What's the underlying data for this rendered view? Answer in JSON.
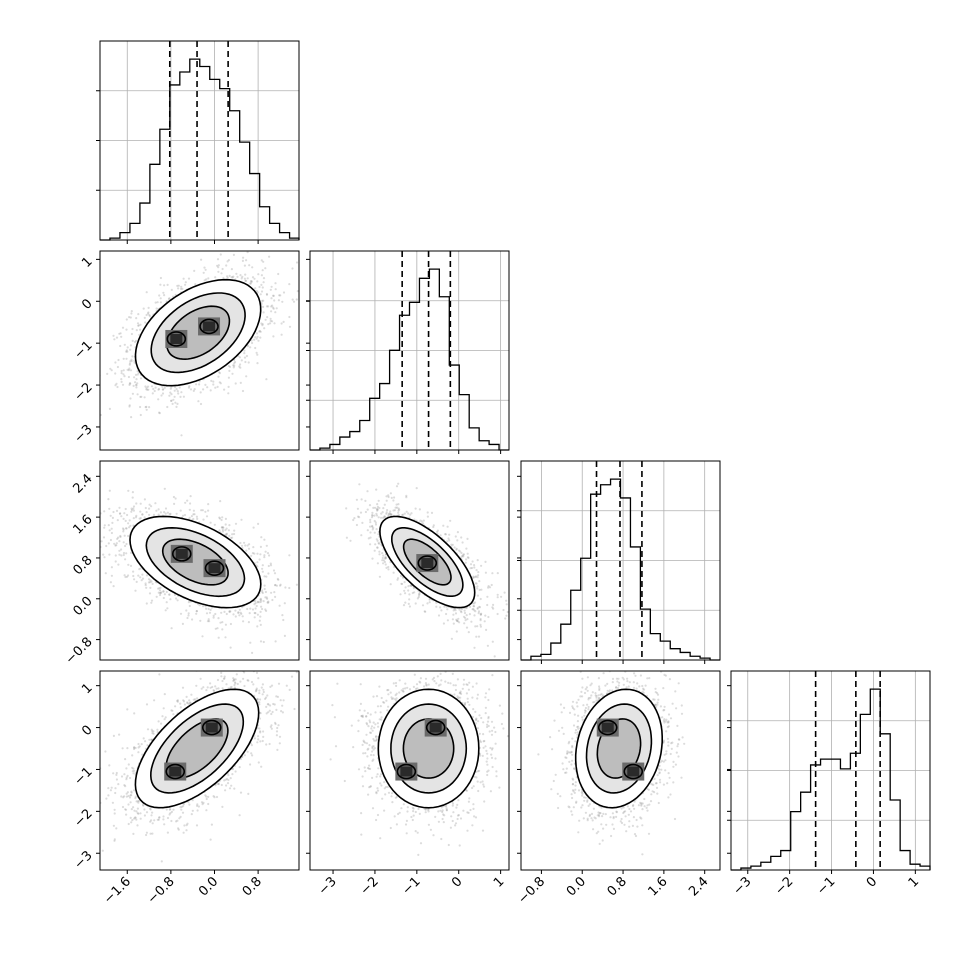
{
  "chart_data": {
    "type": "corner",
    "parameters": 4,
    "grid": true,
    "params": [
      {
        "range": [
          -2.1,
          1.55
        ],
        "ticks": [
          -1.6,
          -0.8,
          0.0,
          0.8
        ],
        "tick_labels": [
          "−1.6",
          "−0.8",
          "0.0",
          "0.8"
        ],
        "quantiles": [
          -0.82,
          -0.32,
          0.25
        ],
        "hist": {
          "edges_start": -2.1,
          "bin_width": 0.183,
          "counts": [
            0,
            0.01,
            0.04,
            0.09,
            0.2,
            0.41,
            0.6,
            0.84,
            0.91,
            0.98,
            0.94,
            0.87,
            0.82,
            0.7,
            0.53,
            0.36,
            0.18,
            0.09,
            0.04,
            0.01
          ]
        }
      },
      {
        "range": [
          -3.55,
          1.2
        ],
        "ticks": [
          -3,
          -2,
          -1,
          0,
          1
        ],
        "tick_labels": [
          "−3",
          "−2",
          "−1",
          "0",
          "1"
        ],
        "quantiles": [
          -1.35,
          -0.72,
          -0.2
        ],
        "hist": {
          "edges_start": -3.55,
          "bin_width": 0.2375,
          "counts": [
            0,
            0.01,
            0.03,
            0.07,
            0.1,
            0.16,
            0.28,
            0.36,
            0.54,
            0.73,
            0.8,
            0.93,
            0.98,
            0.83,
            0.46,
            0.3,
            0.12,
            0.05,
            0.03,
            0
          ]
        }
      },
      {
        "range": [
          -1.2,
          2.7
        ],
        "ticks": [
          -0.8,
          0.0,
          0.8,
          1.6,
          2.4
        ],
        "tick_labels": [
          "−0.8",
          "0.0",
          "0.8",
          "1.6",
          "2.4"
        ],
        "quantiles": [
          0.28,
          0.74,
          1.17
        ],
        "hist": {
          "edges_start": -1.2,
          "bin_width": 0.195,
          "counts": [
            0,
            0.02,
            0.03,
            0.09,
            0.19,
            0.37,
            0.54,
            0.88,
            0.93,
            0.96,
            0.86,
            0.6,
            0.27,
            0.14,
            0.1,
            0.06,
            0.04,
            0.02,
            0.01,
            0
          ]
        }
      },
      {
        "range": [
          -3.4,
          1.35
        ],
        "ticks": [
          -3,
          -2,
          -1,
          0,
          1
        ],
        "tick_labels": [
          "−3",
          "−2",
          "−1",
          "0",
          "1"
        ],
        "quantiles": [
          -1.38,
          -0.42,
          0.16
        ],
        "hist": {
          "edges_start": -3.4,
          "bin_width": 0.2375,
          "counts": [
            0,
            0.01,
            0.02,
            0.04,
            0.07,
            0.1,
            0.3,
            0.4,
            0.54,
            0.57,
            0.57,
            0.52,
            0.6,
            0.8,
            0.93,
            0.7,
            0.36,
            0.1,
            0.03,
            0.02
          ]
        }
      }
    ],
    "pairs": [
      {
        "row": 1,
        "col": 0,
        "center": [
          -0.3,
          -0.75
        ],
        "cov": [
          [
            0.33,
            0.16
          ],
          [
            0.16,
            0.4
          ]
        ],
        "modes": [
          [
            -0.7,
            -0.9
          ],
          [
            -0.1,
            -0.6
          ]
        ]
      },
      {
        "row": 2,
        "col": 0,
        "center": [
          -0.35,
          0.72
        ],
        "cov": [
          [
            0.36,
            -0.13
          ],
          [
            -0.13,
            0.2
          ]
        ],
        "modes": [
          [
            -0.6,
            0.88
          ],
          [
            0.0,
            0.6
          ]
        ]
      },
      {
        "row": 2,
        "col": 1,
        "center": [
          -0.75,
          0.72
        ],
        "cov": [
          [
            0.32,
            -0.17
          ],
          [
            -0.17,
            0.2
          ]
        ],
        "modes": [
          [
            -0.75,
            0.7
          ]
        ]
      },
      {
        "row": 3,
        "col": 0,
        "center": [
          -0.32,
          -0.5
        ],
        "cov": [
          [
            0.32,
            0.24
          ],
          [
            0.24,
            0.5
          ]
        ],
        "modes": [
          [
            -0.72,
            -1.05
          ],
          [
            -0.05,
            0.0
          ]
        ]
      },
      {
        "row": 3,
        "col": 1,
        "center": [
          -0.72,
          -0.5
        ],
        "cov": [
          [
            0.36,
            0.0
          ],
          [
            0.0,
            0.5
          ]
        ],
        "modes": [
          [
            -0.55,
            0.0
          ],
          [
            -1.25,
            -1.05
          ]
        ]
      },
      {
        "row": 3,
        "col": 2,
        "center": [
          0.72,
          -0.5
        ],
        "cov": [
          [
            0.18,
            0.05
          ],
          [
            0.05,
            0.5
          ]
        ],
        "modes": [
          [
            0.5,
            0.0
          ],
          [
            1.0,
            -1.05
          ]
        ]
      }
    ]
  }
}
